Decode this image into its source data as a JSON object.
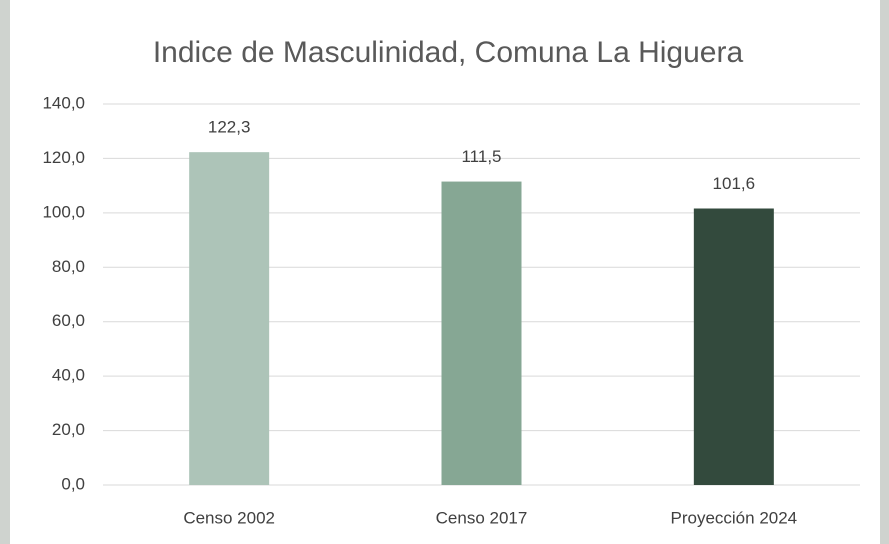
{
  "chart_data": {
    "type": "bar",
    "title": "Indice de Masculinidad, Comuna La Higuera",
    "categories": [
      "Censo 2002",
      "Censo 2017",
      "Proyección 2024"
    ],
    "values": [
      122.3,
      111.5,
      101.6
    ],
    "value_labels": [
      "122,3",
      "111,5",
      "101,6"
    ],
    "colors": [
      "#adc4b8",
      "#86a794",
      "#334a3d"
    ],
    "ylim": [
      0,
      140
    ],
    "yticks": [
      {
        "value": 0,
        "label": "0,0"
      },
      {
        "value": 20,
        "label": "20,0"
      },
      {
        "value": 40,
        "label": "40,0"
      },
      {
        "value": 60,
        "label": "60,0"
      },
      {
        "value": 80,
        "label": "80,0"
      },
      {
        "value": 100,
        "label": "100,0"
      },
      {
        "value": 120,
        "label": "120,0"
      },
      {
        "value": 140,
        "label": "140,0"
      }
    ],
    "grid": true
  }
}
